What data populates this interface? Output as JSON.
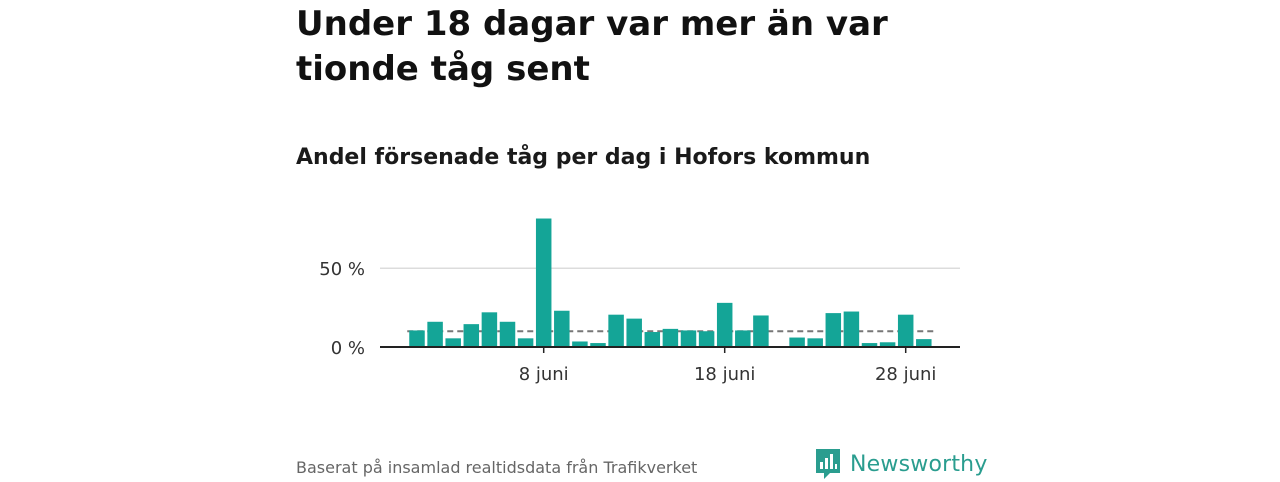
{
  "title": "Under 18 dagar var mer än var tionde tåg sent",
  "subtitle": "Andel försenade tåg per dag i Hofors kommun",
  "source": "Baserat på insamlad realtidsdata från Trafikverket",
  "brand": {
    "name": "Newsworthy",
    "icon": "newsworthy-logo-icon",
    "color": "#2a9d8f"
  },
  "colors": {
    "bar": "#14a597",
    "gridline": "#d0d0d0",
    "baseline": "#222222",
    "reference_line": "#777777"
  },
  "chart_data": {
    "type": "bar",
    "title": "Andel försenade tåg per dag i Hofors kommun",
    "xlabel": "",
    "ylabel": "",
    "unit": "%",
    "x": [
      "2024-06-01",
      "2024-06-02",
      "2024-06-03",
      "2024-06-04",
      "2024-06-05",
      "2024-06-06",
      "2024-06-07",
      "2024-06-08",
      "2024-06-09",
      "2024-06-10",
      "2024-06-11",
      "2024-06-12",
      "2024-06-13",
      "2024-06-14",
      "2024-06-15",
      "2024-06-16",
      "2024-06-17",
      "2024-06-18",
      "2024-06-19",
      "2024-06-20",
      "2024-06-21",
      "2024-06-22",
      "2024-06-23",
      "2024-06-24",
      "2024-06-25",
      "2024-06-26",
      "2024-06-27",
      "2024-06-28",
      "2024-06-29"
    ],
    "values": [
      10.5,
      16,
      5.5,
      14.5,
      22,
      16,
      5.5,
      81.5,
      23,
      3.5,
      2.5,
      20.5,
      18,
      9.5,
      11.5,
      10.5,
      10,
      28,
      10.5,
      20,
      null,
      6,
      5.5,
      21.5,
      22.5,
      2.5,
      3,
      20.5,
      5
    ],
    "reference_line": {
      "value": 10,
      "style": "dashed"
    },
    "x_ticks": [
      {
        "x": "2024-06-08",
        "label": "8 juni"
      },
      {
        "x": "2024-06-18",
        "label": "18 juni"
      },
      {
        "x": "2024-06-28",
        "label": "28 juni"
      }
    ],
    "y_ticks": [
      {
        "value": 0,
        "label": "0 %"
      },
      {
        "value": 50,
        "label": "50 %"
      }
    ],
    "ylim": [
      0,
      85
    ],
    "grid": true,
    "legend": "none"
  }
}
